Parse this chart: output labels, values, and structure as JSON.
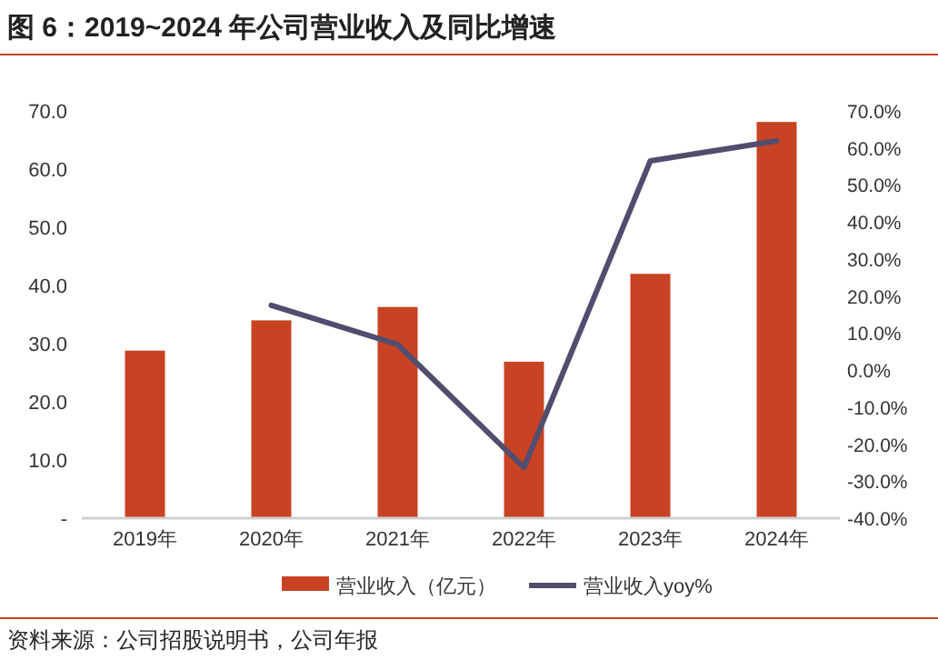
{
  "chart_data": {
    "type": "bar",
    "title": "图 6：2019~2024 年公司营业收入及同比增速",
    "categories": [
      "2019年",
      "2020年",
      "2021年",
      "2022年",
      "2023年",
      "2024年"
    ],
    "series": [
      {
        "name": "营业收入（亿元）",
        "color": "#c84323",
        "values": [
          28.8,
          34.0,
          36.3,
          26.9,
          42.0,
          68.1
        ]
      },
      {
        "name": "营业收入yoy%",
        "type": "line",
        "axis": "y2",
        "color": "#514d6e",
        "values": [
          null,
          17.5,
          6.9,
          -26.3,
          56.5,
          61.9
        ]
      }
    ],
    "ylim": [
      0,
      70
    ],
    "yticks": [
      {
        "value": 0,
        "label": "-"
      },
      {
        "value": 10,
        "label": "10.0"
      },
      {
        "value": 20,
        "label": "20.0"
      },
      {
        "value": 30,
        "label": "30.0"
      },
      {
        "value": 40,
        "label": "40.0"
      },
      {
        "value": 50,
        "label": "50.0"
      },
      {
        "value": 60,
        "label": "60.0"
      },
      {
        "value": 70,
        "label": "70.0"
      }
    ],
    "y2lim": [
      -40,
      70
    ],
    "y2ticks": [
      {
        "value": -40,
        "label": "-40.0%"
      },
      {
        "value": -30,
        "label": "-30.0%"
      },
      {
        "value": -20,
        "label": "-20.0%"
      },
      {
        "value": -10,
        "label": "-10.0%"
      },
      {
        "value": 0,
        "label": "0.0%"
      },
      {
        "value": 10,
        "label": "10.0%"
      },
      {
        "value": 20,
        "label": "20.0%"
      },
      {
        "value": 30,
        "label": "30.0%"
      },
      {
        "value": 40,
        "label": "40.0%"
      },
      {
        "value": 50,
        "label": "50.0%"
      },
      {
        "value": 60,
        "label": "60.0%"
      },
      {
        "value": 70,
        "label": "70.0%"
      }
    ],
    "grid": false,
    "legend": "bottom",
    "annotations": [
      "资料来源：公司招股说明书，公司年报"
    ]
  }
}
